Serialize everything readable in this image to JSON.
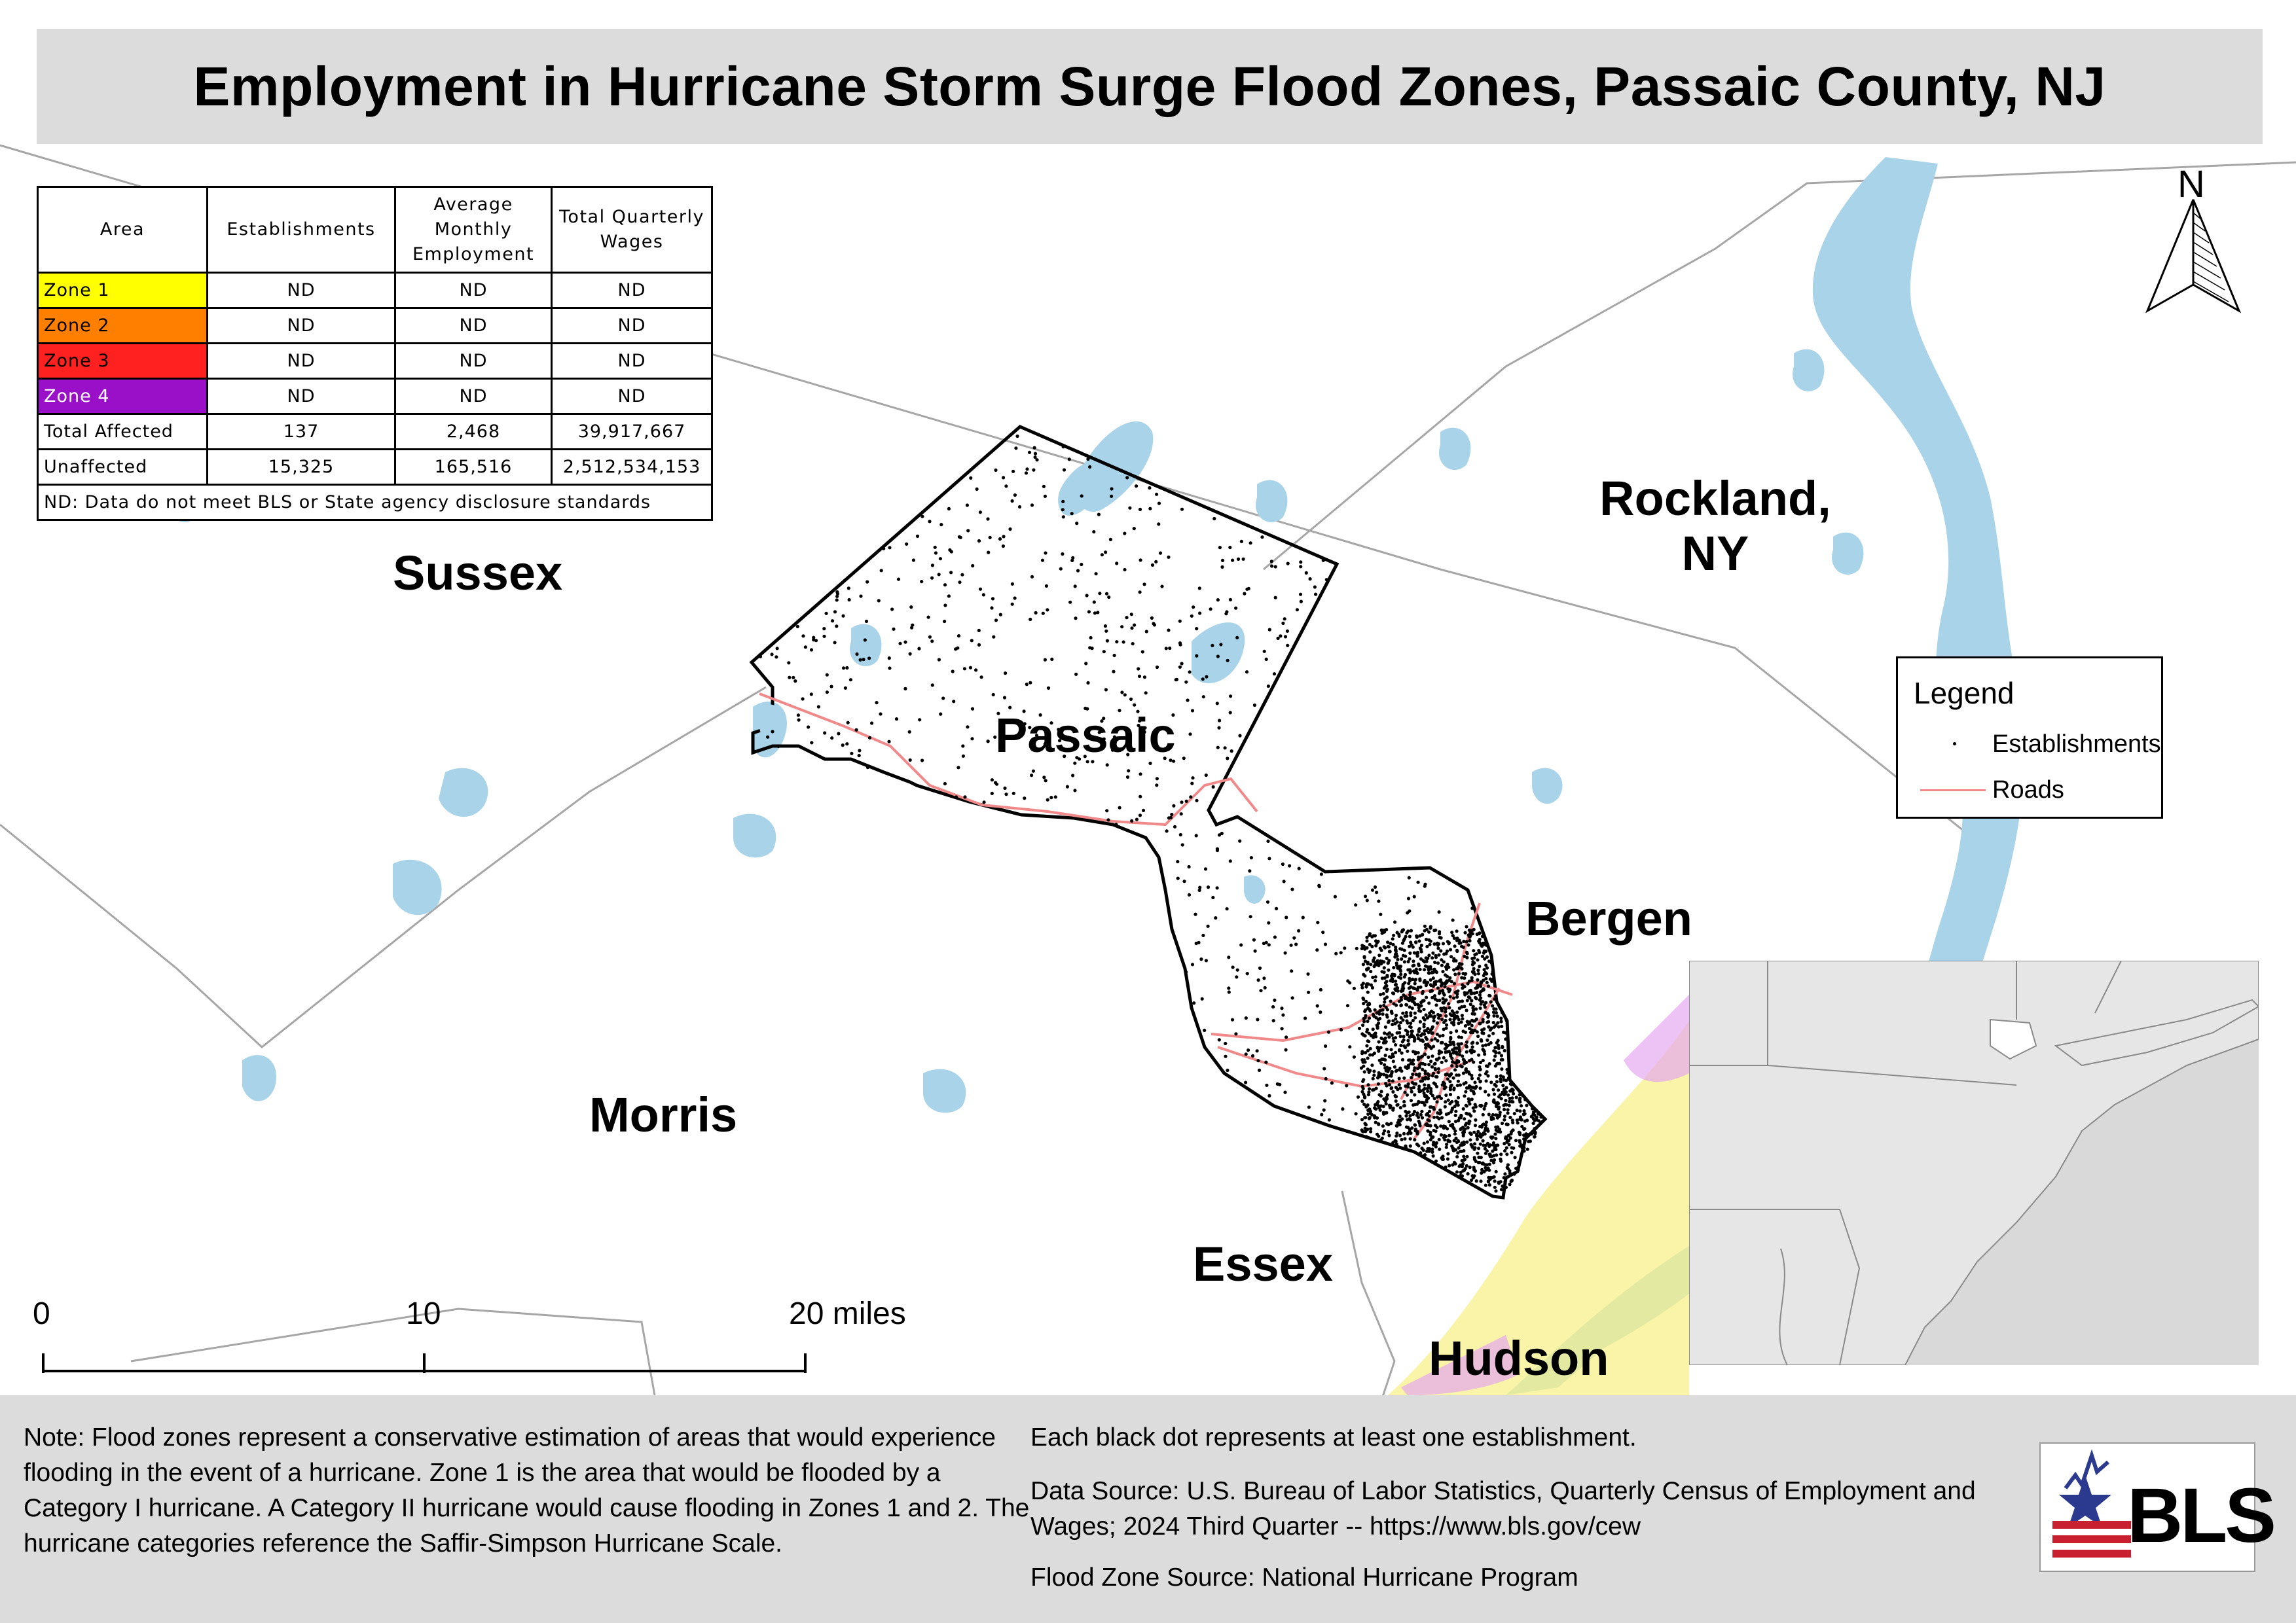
{
  "title": "Employment in Hurricane Storm Surge Flood Zones, Passaic County, NJ",
  "table": {
    "headers": [
      "Area",
      "Establishments",
      "Average Monthly Employment",
      "Total Quarterly Wages"
    ],
    "rows": [
      {
        "area": "Zone 1",
        "color": "#ffff00",
        "text_color": "#000000",
        "establishments": "ND",
        "employment": "ND",
        "wages": "ND"
      },
      {
        "area": "Zone 2",
        "color": "#ff8000",
        "text_color": "#000000",
        "establishments": "ND",
        "employment": "ND",
        "wages": "ND"
      },
      {
        "area": "Zone 3",
        "color": "#ff2020",
        "text_color": "#000000",
        "establishments": "ND",
        "employment": "ND",
        "wages": "ND"
      },
      {
        "area": "Zone 4",
        "color": "#9a10c8",
        "text_color": "#ffffff",
        "establishments": "ND",
        "employment": "ND",
        "wages": "ND"
      },
      {
        "area": "Total Affected",
        "color": "#ffffff",
        "text_color": "#000000",
        "establishments": "137",
        "employment": "2,468",
        "wages": "39,917,667"
      },
      {
        "area": "Unaffected",
        "color": "#ffffff",
        "text_color": "#000000",
        "establishments": "15,325",
        "employment": "165,516",
        "wages": "2,512,534,153"
      }
    ],
    "note": "ND: Data do not meet BLS or State agency disclosure standards"
  },
  "regions": {
    "sussex": "Sussex",
    "passaic": "Passaic",
    "rockland": "Rockland,\nNY",
    "bergen": "Bergen",
    "morris": "Morris",
    "essex": "Essex",
    "hudson": "Hudson"
  },
  "legend": {
    "title": "Legend",
    "items": [
      {
        "label": "Establishments",
        "symbol": "dot"
      },
      {
        "label": "Roads",
        "symbol": "line",
        "color": "#f08a8a"
      }
    ]
  },
  "north_arrow": "N",
  "scale_bar": {
    "labels": [
      "0",
      "10",
      "20 miles"
    ]
  },
  "footer": {
    "note": "Note: Flood zones represent a conservative estimation of areas that would experience flooding in the event of a hurricane. Zone 1 is the area that would be flooded by a Category I hurricane. A Category II hurricane would cause flooding in Zones 1 and 2. The hurricane categories reference the Saffir-Simpson Hurricane Scale.",
    "dot_note": "Each black dot represents at least one establishment.",
    "data_source": "Data Source: U.S. Bureau of Labor Statistics, Quarterly Census of Employment and Wages; 2024 Third Quarter -- https://www.bls.gov/cew",
    "flood_source": "Flood Zone Source: National Hurricane Program"
  },
  "logo": {
    "text": "BLS"
  },
  "colors": {
    "water": "#a9d3e8",
    "roads": "#f08a8a",
    "footer_bg": "#dcdcdc",
    "title_bg": "#dcdcdc",
    "flood_zone": "#f7f08a",
    "flood_zone_purple": "#e6a8f0"
  }
}
